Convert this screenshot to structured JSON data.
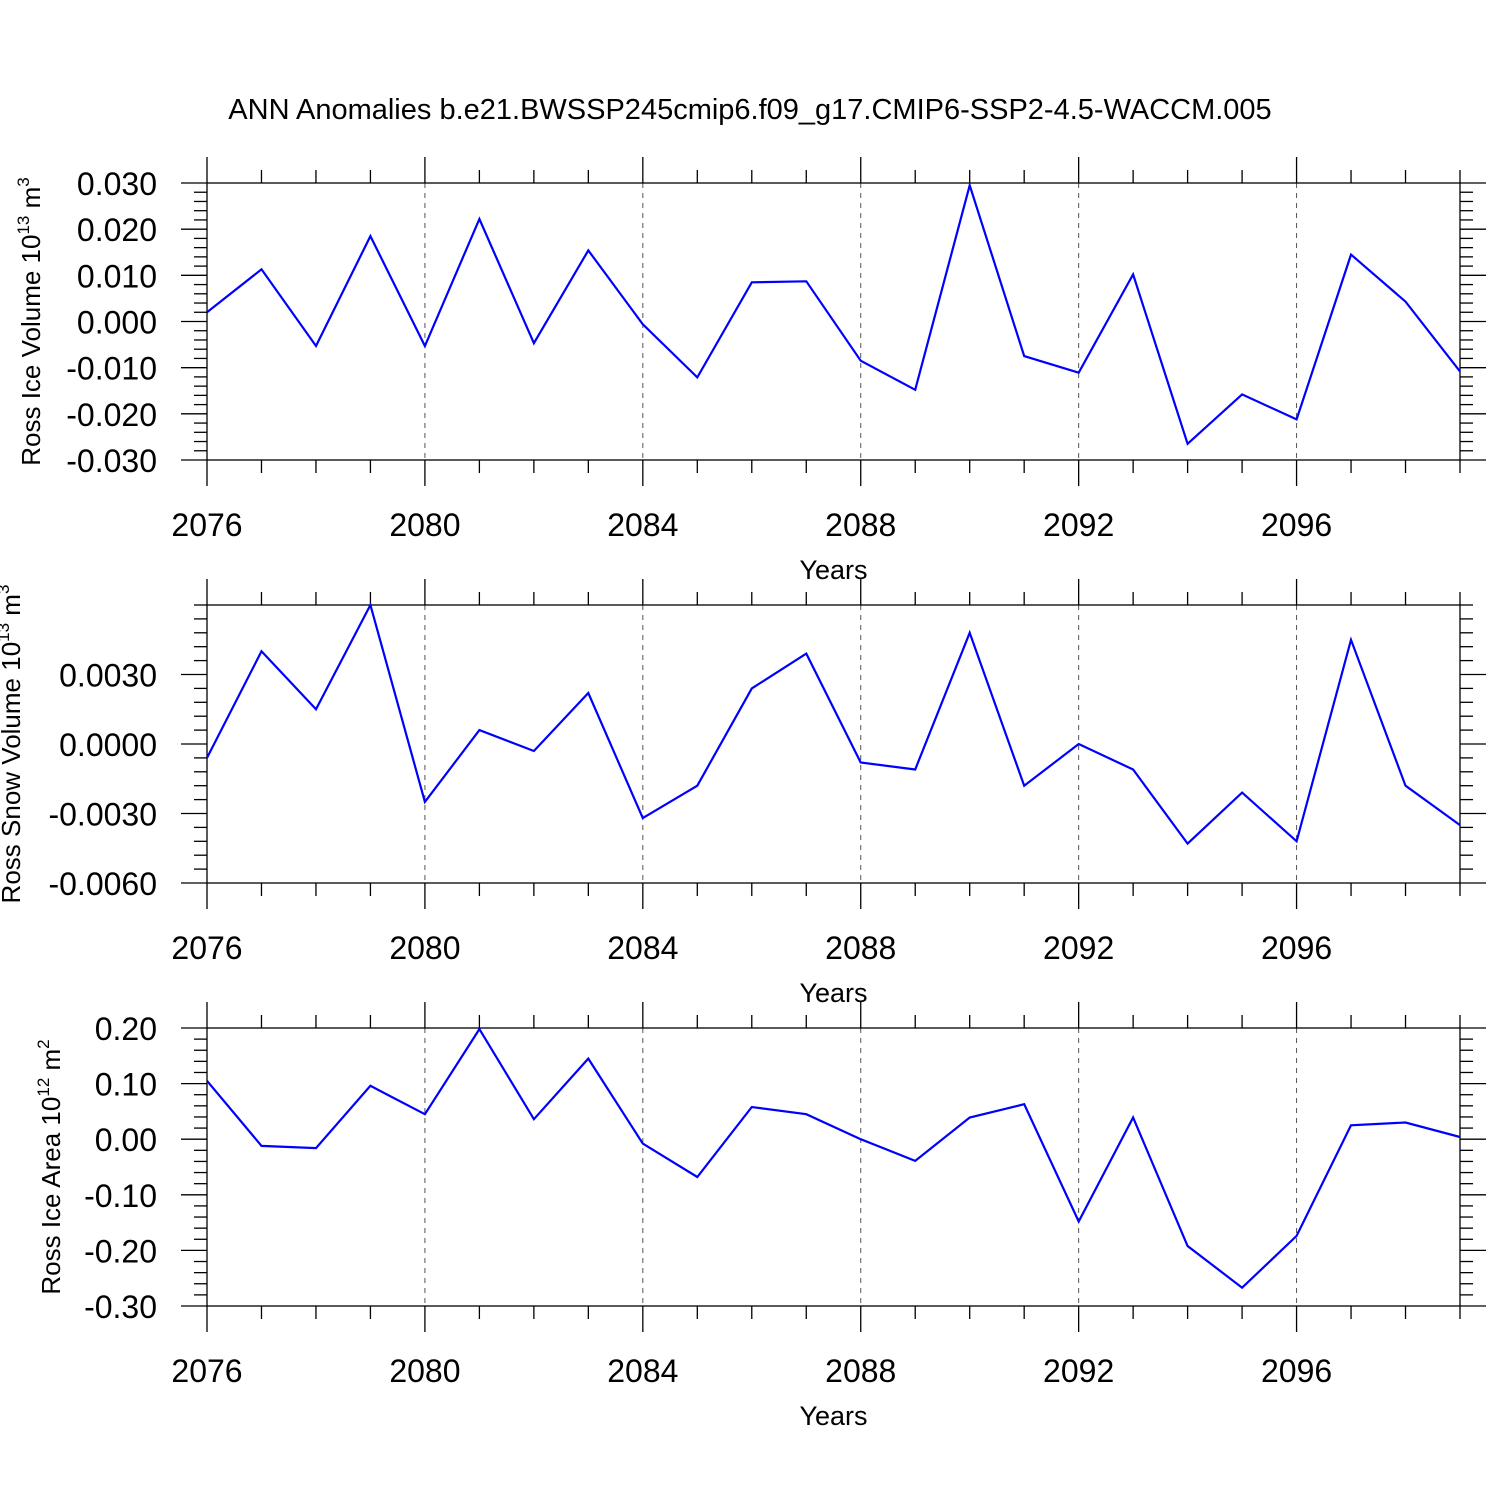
{
  "title": "ANN Anomalies b.e21.BWSSP245cmip6.f09_g17.CMIP6-SSP2-4.5-WACCM.005",
  "colors": {
    "line": "#0000ff",
    "axis": "#000000",
    "grid": "#555555"
  },
  "chart_data": [
    {
      "type": "line",
      "ylabel_main": "Ross Ice Volume 10",
      "ylabel_exp": "13",
      "ylabel_unit": " m",
      "ylabel_unit_exp": "3",
      "xlabel": "Years",
      "xlim": [
        2076,
        2099
      ],
      "ylim": [
        -0.03,
        0.03
      ],
      "yticks": [
        -0.03,
        -0.02,
        -0.01,
        0.0,
        0.01,
        0.02,
        0.03
      ],
      "ytick_labels": [
        "-0.030",
        "-0.020",
        "-0.010",
        "0.000",
        "0.010",
        "0.020",
        "0.030"
      ],
      "xticks": [
        2076,
        2080,
        2084,
        2088,
        2092,
        2096
      ],
      "xtick_labels": [
        "2076",
        "2080",
        "2084",
        "2088",
        "2092",
        "2096"
      ],
      "grid": "vertical dashed at major x ticks",
      "x": [
        2076,
        2077,
        2078,
        2079,
        2080,
        2081,
        2082,
        2083,
        2084,
        2085,
        2086,
        2087,
        2088,
        2089,
        2090,
        2091,
        2092,
        2093,
        2094,
        2095,
        2096,
        2097,
        2098,
        2099
      ],
      "series": [
        {
          "values": [
            0.002,
            0.0113,
            -0.0053,
            0.0185,
            -0.0053,
            0.0222,
            -0.0047,
            0.0154,
            -0.0006,
            -0.0121,
            0.0085,
            0.0087,
            -0.0085,
            -0.0148,
            0.0295,
            -0.0075,
            -0.0111,
            0.0102,
            -0.0265,
            -0.0158,
            -0.0212,
            0.0145,
            0.0043,
            -0.0108
          ]
        }
      ]
    },
    {
      "type": "line",
      "ylabel_main": "Ross Snow Volume 10",
      "ylabel_exp": "13",
      "ylabel_unit": " m",
      "ylabel_unit_exp": "3",
      "xlabel": "Years",
      "xlim": [
        2076,
        2099
      ],
      "ylim": [
        -0.006,
        0.006
      ],
      "yticks": [
        -0.006,
        -0.003,
        0.0,
        0.003
      ],
      "ytick_labels": [
        "-0.0060",
        "-0.0030",
        "0.0000",
        "0.0030"
      ],
      "xticks": [
        2076,
        2080,
        2084,
        2088,
        2092,
        2096
      ],
      "xtick_labels": [
        "2076",
        "2080",
        "2084",
        "2088",
        "2092",
        "2096"
      ],
      "grid": "vertical dashed at major x ticks",
      "x": [
        2076,
        2077,
        2078,
        2079,
        2080,
        2081,
        2082,
        2083,
        2084,
        2085,
        2086,
        2087,
        2088,
        2089,
        2090,
        2091,
        2092,
        2093,
        2094,
        2095,
        2096,
        2097,
        2098,
        2099
      ],
      "series": [
        {
          "values": [
            -0.0006,
            0.004,
            0.0015,
            0.006,
            -0.0025,
            0.0006,
            -0.0003,
            0.0022,
            -0.0032,
            -0.0018,
            0.0024,
            0.0039,
            -0.0008,
            -0.0011,
            0.0048,
            -0.0018,
            0.0,
            -0.0011,
            -0.0043,
            -0.0021,
            -0.0042,
            0.0045,
            -0.0018,
            -0.0035
          ]
        }
      ]
    },
    {
      "type": "line",
      "ylabel_main": "Ross Ice Area 10",
      "ylabel_exp": "12",
      "ylabel_unit": " m",
      "ylabel_unit_exp": "2",
      "xlabel": "Years",
      "xlim": [
        2076,
        2099
      ],
      "ylim": [
        -0.3,
        0.2
      ],
      "yticks": [
        -0.3,
        -0.2,
        -0.1,
        0.0,
        0.1,
        0.2
      ],
      "ytick_labels": [
        "-0.30",
        "-0.20",
        "-0.10",
        "0.00",
        "0.10",
        "0.20"
      ],
      "xticks": [
        2076,
        2080,
        2084,
        2088,
        2092,
        2096
      ],
      "xtick_labels": [
        "2076",
        "2080",
        "2084",
        "2088",
        "2092",
        "2096"
      ],
      "grid": "vertical dashed at major x ticks",
      "x": [
        2076,
        2077,
        2078,
        2079,
        2080,
        2081,
        2082,
        2083,
        2084,
        2085,
        2086,
        2087,
        2088,
        2089,
        2090,
        2091,
        2092,
        2093,
        2094,
        2095,
        2096,
        2097,
        2098,
        2099
      ],
      "series": [
        {
          "values": [
            0.105,
            -0.012,
            -0.016,
            0.096,
            0.045,
            0.198,
            0.036,
            0.145,
            -0.008,
            -0.068,
            0.058,
            0.045,
            0.0,
            -0.039,
            0.039,
            0.063,
            -0.148,
            0.039,
            -0.192,
            -0.267,
            -0.174,
            0.025,
            0.03,
            0.004
          ]
        }
      ]
    }
  ]
}
